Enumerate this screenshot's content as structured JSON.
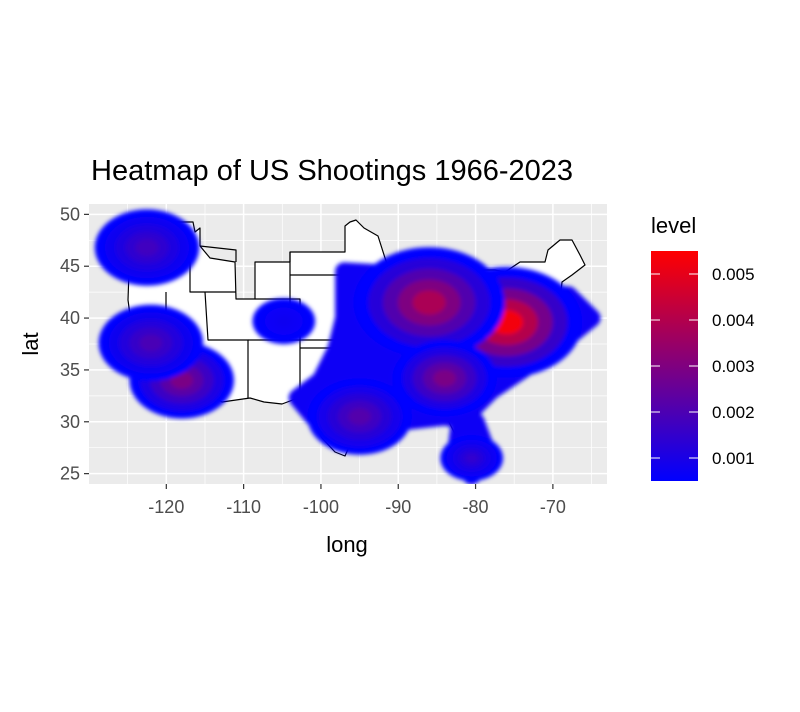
{
  "chart_data": {
    "type": "heatmap",
    "title": "Heatmap of US Shootings 1966-2023",
    "xlabel": "long",
    "ylabel": "lat",
    "xlim": [
      -130,
      -63
    ],
    "ylim": [
      24,
      51
    ],
    "x_ticks": [
      -120,
      -110,
      -100,
      -90,
      -80,
      -70
    ],
    "y_ticks": [
      25,
      30,
      35,
      40,
      45,
      50
    ],
    "x_tick_labels": [
      "-120",
      "-110",
      "-100",
      "-90",
      "-80",
      "-70"
    ],
    "y_tick_labels": [
      "25",
      "30",
      "35",
      "40",
      "45",
      "50"
    ],
    "grid": true,
    "background": "#ebebeb",
    "legend": {
      "title": "level",
      "placement": "right",
      "range": [
        0.0005,
        0.0055
      ],
      "breaks": [
        0.001,
        0.002,
        0.003,
        0.004,
        0.005
      ],
      "break_labels": [
        "0.001",
        "0.002",
        "0.003",
        "0.004",
        "0.005"
      ],
      "color_low": "#0000ff",
      "color_high": "#ff0000"
    },
    "density_peaks": [
      {
        "long": -76,
        "lat": 39.6,
        "level": 0.0055
      },
      {
        "long": -86,
        "lat": 41.5,
        "level": 0.004
      },
      {
        "long": -84,
        "lat": 34.2,
        "level": 0.003
      },
      {
        "long": -95,
        "lat": 30.5,
        "level": 0.0022
      },
      {
        "long": -118,
        "lat": 34.0,
        "level": 0.003
      },
      {
        "long": -122,
        "lat": 37.6,
        "level": 0.002
      },
      {
        "long": -122.5,
        "lat": 46.8,
        "level": 0.0018
      },
      {
        "long": -80.5,
        "lat": 26.5,
        "level": 0.0015
      },
      {
        "long": -104.8,
        "lat": 39.7,
        "level": 0.0008
      }
    ]
  }
}
